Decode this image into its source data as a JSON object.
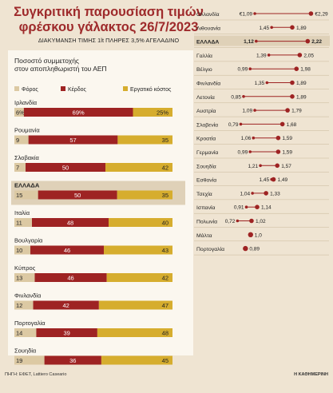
{
  "header": {
    "title_line1": "Συγκριτική παρουσίαση τιμών",
    "title_line2": "φρέσκου γάλακτος 26/7/2023",
    "subtitle": "ΔΙΑΚΥΜΑΝΣΗ ΤΙΜΗΣ 1lt ΠΛΗΡΕΣ 3,5% ΑΓΕΛΑΔΙΝΟ"
  },
  "credits": {
    "source": "ΠΗΓΗ: ΕΦΕΤ, Lattiero Caseario",
    "publisher": "Η ΚΑΘΗΜΕΡΙΝΗ"
  },
  "colors": {
    "foros": "#dcc9a3",
    "kerdos": "#9e2323",
    "ergatiko": "#d6ad2e",
    "range_line": "#9e2323",
    "dot": "#9e2323",
    "highlight_row": "#dfd1b8",
    "background": "#efe4d2"
  },
  "chart_data": [
    {
      "type": "bar",
      "stacked": true,
      "orientation": "horizontal",
      "title": "Ποσοστό συμμετοχής στον αποπληθωριστή του ΑΕΠ",
      "legend": [
        "Φόρος",
        "Κέρδος",
        "Εργατικό κόστος"
      ],
      "legend_position": "top",
      "categories": [
        "Ιρλανδία",
        "Ρουμανία",
        "Σλοβακία",
        "ΕΛΛΑΔΑ",
        "Ιταλία",
        "Βουλγαρία",
        "Κύπρος",
        "Φινλανδία",
        "Πορτογαλία",
        "Σουηδία"
      ],
      "highlight": "ΕΛΛΑΔΑ",
      "series": [
        {
          "name": "Φόρος",
          "values": [
            6,
            9,
            7,
            15,
            11,
            10,
            13,
            12,
            14,
            19
          ]
        },
        {
          "name": "Κέρδος",
          "values": [
            69,
            57,
            50,
            50,
            48,
            46,
            46,
            42,
            39,
            36
          ]
        },
        {
          "name": "Εργατικό κόστος",
          "values": [
            25,
            35,
            42,
            35,
            40,
            43,
            42,
            47,
            48,
            45
          ]
        }
      ],
      "value_labels": [
        [
          "6%",
          "69%",
          "25%"
        ],
        [
          "9",
          "57",
          "35"
        ],
        [
          "7",
          "50",
          "42"
        ],
        [
          "15",
          "50",
          "35"
        ],
        [
          "11",
          "48",
          "40"
        ],
        [
          "10",
          "46",
          "43"
        ],
        [
          "13",
          "46",
          "42"
        ],
        [
          "12",
          "42",
          "47"
        ],
        [
          "14",
          "39",
          "48"
        ],
        [
          "19",
          "36",
          "45"
        ]
      ]
    },
    {
      "type": "scatter",
      "subtype": "range",
      "unit": "€",
      "xlim": [
        0.85,
        2.3
      ],
      "highlight": "ΕΛΛΑΔΑ",
      "categories": [
        "Ολλανδία",
        "Λιθουανία",
        "ΕΛΛΑΔΑ",
        "Γαλλία",
        "Βέλγιο",
        "Φινλανδία",
        "Λετονία",
        "Αυστρία",
        "Σλοβενία",
        "Κροατία",
        "Γερμανία",
        "Σουηδία",
        "Εσθονία",
        "Τσεχία",
        "Ισπανία",
        "Πολωνία",
        "Μάλτα",
        "Πορτογαλία"
      ],
      "min": [
        1.09,
        1.45,
        1.12,
        1.39,
        0.99,
        1.35,
        0.85,
        1.09,
        0.79,
        1.06,
        0.99,
        1.21,
        1.45,
        1.04,
        0.91,
        0.72,
        1.0,
        0.89
      ],
      "max": [
        2.29,
        1.89,
        2.22,
        2.05,
        1.98,
        1.89,
        1.89,
        1.79,
        1.68,
        1.59,
        1.59,
        1.57,
        1.49,
        1.33,
        1.14,
        1.02,
        1.0,
        0.89
      ],
      "min_labels": [
        "€1,09",
        "1,45",
        "1,12",
        "1,39",
        "0,99",
        "1,35",
        "0,85",
        "1,09",
        "0,79",
        "1,06",
        "0,99",
        "1,21",
        "1,45",
        "1,04",
        "0,91",
        "0,72",
        "",
        ""
      ],
      "max_labels": [
        "€2,29",
        "1,89",
        "2,22",
        "2,05",
        "1,98",
        "1,89",
        "1,89",
        "1,79",
        "1,68",
        "1,59",
        "1,59",
        "1,57",
        "1,49",
        "1,33",
        "1,14",
        "1,02",
        "1,0",
        "0,89"
      ]
    }
  ]
}
